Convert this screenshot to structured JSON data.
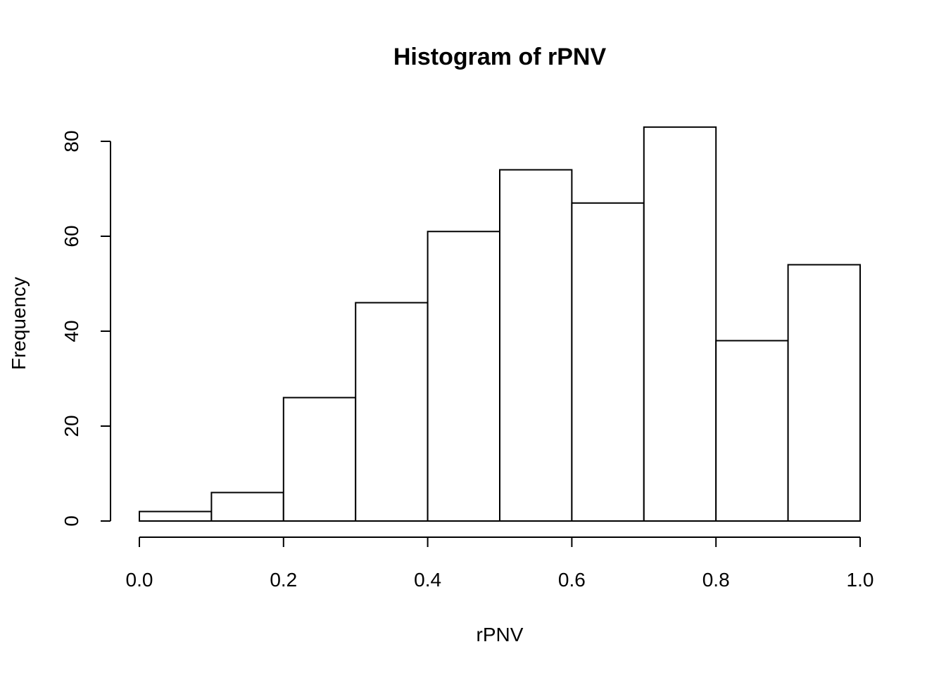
{
  "chart_data": {
    "type": "bar",
    "title": "Histogram of rPNV",
    "xlabel": "rPNV",
    "ylabel": "Frequency",
    "bins": [
      {
        "start": 0.0,
        "end": 0.1,
        "count": 2
      },
      {
        "start": 0.1,
        "end": 0.2,
        "count": 6
      },
      {
        "start": 0.2,
        "end": 0.3,
        "count": 26
      },
      {
        "start": 0.3,
        "end": 0.4,
        "count": 46
      },
      {
        "start": 0.4,
        "end": 0.5,
        "count": 61
      },
      {
        "start": 0.5,
        "end": 0.6,
        "count": 74
      },
      {
        "start": 0.6,
        "end": 0.7,
        "count": 67
      },
      {
        "start": 0.7,
        "end": 0.8,
        "count": 83
      },
      {
        "start": 0.8,
        "end": 0.9,
        "count": 38
      },
      {
        "start": 0.9,
        "end": 1.0,
        "count": 54
      }
    ],
    "xlim": [
      0.0,
      1.0
    ],
    "ylim": [
      0,
      83
    ],
    "x_ticks": [
      0.0,
      0.2,
      0.4,
      0.6,
      0.8,
      1.0
    ],
    "x_tick_labels": [
      "0.0",
      "0.2",
      "0.4",
      "0.6",
      "0.8",
      "1.0"
    ],
    "y_ticks": [
      0,
      20,
      40,
      60,
      80
    ],
    "y_tick_labels": [
      "0",
      "20",
      "40",
      "60",
      "80"
    ],
    "grid": false,
    "bar_fill": "#ffffff",
    "bar_stroke": "#000000"
  }
}
